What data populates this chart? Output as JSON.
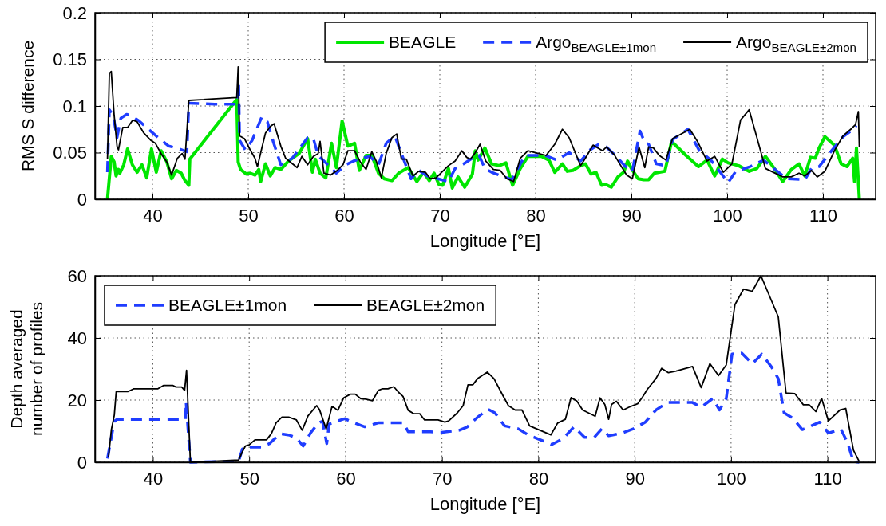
{
  "chart_data": [
    {
      "type": "line",
      "xlabel": "Longitude  [°E]",
      "ylabel": "RMS S difference",
      "xlim": [
        34,
        115.5
      ],
      "ylim": [
        0,
        0.2
      ],
      "xticks": [
        40,
        50,
        60,
        70,
        80,
        90,
        100,
        110
      ],
      "yticks": [
        0,
        0.05,
        0.1,
        0.15,
        0.2
      ],
      "grid": true,
      "legend": "top right",
      "series": [
        {
          "name": "BEAGLE",
          "color": "#00e600",
          "line_style": "solid",
          "x": [
            35.3,
            35.7,
            36.0,
            36.2,
            36.45,
            36.6,
            37.0,
            37.4,
            37.9,
            38.4,
            38.9,
            39.4,
            39.9,
            40.4,
            40.9,
            41.5,
            42.0,
            42.5,
            43.0,
            43.4,
            43.8,
            43.9,
            48.8,
            48.95,
            49.2,
            49.8,
            50.2,
            50.7,
            51.1,
            51.3,
            51.8,
            52.3,
            52.8,
            53.4,
            54.2,
            55.3,
            56.2,
            56.7,
            57.0,
            57.5,
            58.1,
            58.7,
            59.2,
            59.8,
            60.4,
            61.1,
            61.6,
            62.3,
            62.9,
            63.6,
            64.2,
            65.0,
            65.7,
            66.7,
            67.6,
            68.3,
            68.9,
            69.4,
            69.9,
            70.3,
            70.9,
            71.3,
            71.9,
            72.6,
            73.4,
            73.7,
            74.0,
            74.7,
            75.4,
            76.2,
            76.9,
            77.6,
            78.4,
            79.2,
            80.6,
            81.4,
            82.0,
            82.8,
            83.3,
            83.9,
            84.7,
            85.2,
            85.8,
            86.3,
            86.9,
            87.3,
            87.9,
            88.6,
            89.2,
            89.6,
            90.0,
            90.7,
            91.3,
            91.8,
            92.4,
            93.5,
            94.2,
            95.7,
            97.0,
            97.9,
            98.7,
            99.5,
            100.1,
            101.2,
            102.3,
            103.1,
            104.0,
            105.0,
            105.8,
            106.7,
            107.5,
            108.1,
            108.7,
            109.2,
            109.6,
            110.2,
            111.2,
            111.9,
            112.5,
            113.1,
            113.3,
            113.5,
            113.8
          ],
          "values": [
            0,
            0.046,
            0.04,
            0.025,
            0.032,
            0.028,
            0.037,
            0.054,
            0.037,
            0.029,
            0.037,
            0.023,
            0.054,
            0.029,
            0.052,
            0.04,
            0.022,
            0.031,
            0.028,
            0.02,
            0.015,
            0.043,
            0.107,
            0.04,
            0.032,
            0.027,
            0.028,
            0.026,
            0.032,
            0.019,
            0.038,
            0.025,
            0.034,
            0.032,
            0.041,
            0.049,
            0.065,
            0.029,
            0.043,
            0.028,
            0.023,
            0.06,
            0.034,
            0.084,
            0.057,
            0.06,
            0.031,
            0.047,
            0.047,
            0.028,
            0.022,
            0.02,
            0.028,
            0.034,
            0.019,
            0.029,
            0.02,
            0.028,
            0.016,
            0.015,
            0.033,
            0.012,
            0.024,
            0.013,
            0.027,
            0.052,
            0.042,
            0.055,
            0.038,
            0.036,
            0.039,
            0.015,
            0.033,
            0.046,
            0.046,
            0.042,
            0.029,
            0.038,
            0.03,
            0.031,
            0.036,
            0.038,
            0.027,
            0.029,
            0.015,
            0.016,
            0.013,
            0.024,
            0.029,
            0.041,
            0.033,
            0.022,
            0.021,
            0.021,
            0.028,
            0.03,
            0.062,
            0.047,
            0.035,
            0.042,
            0.025,
            0.043,
            0.039,
            0.036,
            0.03,
            0.033,
            0.046,
            0.032,
            0.019,
            0.032,
            0.038,
            0.025,
            0.045,
            0.044,
            0.055,
            0.067,
            0.058,
            0.038,
            0.035,
            0.044,
            0.019,
            0.055,
            0
          ]
        },
        {
          "name": "Argo$_{BEAGLE±1mon}$",
          "color": "#1f3dff",
          "line_style": "dashed",
          "x": [
            35.3,
            35.5,
            35.9,
            36.3,
            36.7,
            37.3,
            37.7,
            38.6,
            39.7,
            40.6,
            41.7,
            42.8,
            43.6,
            43.8,
            46.5,
            48.85,
            49.0,
            49.1,
            49.7,
            50.4,
            51.4,
            52.0,
            52.6,
            53.4,
            54.6,
            56.2,
            56.8,
            57.3,
            58.2,
            59.2,
            60.2,
            61.0,
            61.9,
            62.7,
            63.6,
            64.4,
            65.3,
            66.1,
            67.0,
            67.8,
            68.7,
            69.8,
            70.9,
            71.6,
            72.5,
            73.4,
            74.1,
            74.7,
            75.4,
            77.5,
            78.9,
            81.0,
            82.2,
            83.5,
            84.7,
            85.7,
            86.6,
            87.4,
            88.3,
            89.4,
            90.1,
            90.9,
            91.4,
            91.8,
            92.6,
            93.6,
            94.3,
            95.9,
            97.1,
            98.3,
            99.2,
            100.1,
            100.9,
            102.4,
            103.8,
            105.0,
            106.2,
            108.1,
            108.8,
            109.6,
            110.9,
            112.1,
            112.9,
            113.5
          ],
          "values": [
            0.029,
            0.096,
            0.09,
            0.066,
            0.087,
            0.091,
            0.09,
            0.084,
            0.074,
            0.066,
            0.057,
            0.054,
            0.051,
            0.103,
            0.102,
            0.102,
            0.125,
            0.063,
            0.053,
            0.063,
            0.088,
            0.083,
            0.062,
            0.037,
            0.044,
            0.066,
            0.065,
            0.047,
            0.038,
            0.028,
            0.037,
            0.041,
            0.044,
            0.046,
            0.037,
            0.06,
            0.068,
            0.046,
            0.022,
            0.031,
            0.025,
            0.022,
            0.019,
            0.033,
            0.038,
            0.044,
            0.047,
            0.033,
            0.029,
            0.021,
            0.047,
            0.047,
            0.042,
            0.05,
            0.041,
            0.053,
            0.059,
            0.056,
            0.047,
            0.035,
            0.03,
            0.073,
            0.061,
            0.059,
            0.038,
            0.036,
            0.064,
            0.075,
            0.052,
            0.042,
            0.03,
            0.018,
            0.03,
            0.035,
            0.042,
            0.032,
            0.022,
            0.021,
            0.033,
            0.035,
            0.052,
            0.067,
            0.073,
            0.079
          ]
        },
        {
          "name": "Argo$_{BEAGLE±2mon}$",
          "color": "#000000",
          "line_style": "solid",
          "x": [
            35.3,
            35.5,
            35.7,
            36.0,
            36.3,
            36.45,
            36.9,
            37.4,
            37.95,
            38.4,
            39.1,
            39.85,
            40.3,
            40.9,
            41.5,
            42.0,
            42.6,
            43.1,
            43.4,
            43.8,
            48.8,
            48.95,
            49.1,
            49.6,
            50.2,
            50.7,
            50.96,
            51.4,
            51.8,
            52.3,
            52.7,
            53.4,
            53.9,
            55.1,
            55.6,
            56.2,
            56.8,
            57.3,
            57.5,
            57.9,
            58.6,
            59.3,
            59.9,
            60.4,
            61.1,
            61.7,
            62.3,
            62.9,
            63.4,
            63.9,
            64.4,
            65.0,
            65.5,
            65.99,
            66.5,
            67.2,
            67.8,
            68.5,
            69.0,
            69.6,
            70.9,
            71.6,
            72.3,
            72.8,
            73.2,
            73.7,
            74.2,
            74.8,
            75.6,
            76.3,
            77.0,
            77.7,
            78.4,
            79.2,
            81.1,
            82.0,
            82.8,
            83.5,
            84.7,
            85.2,
            86.0,
            87.0,
            87.4,
            88.2,
            88.9,
            89.5,
            90.1,
            90.8,
            91.4,
            91.8,
            92.3,
            92.9,
            93.6,
            94.3,
            96.1,
            96.9,
            97.9,
            98.7,
            99.6,
            100.5,
            101.4,
            102.3,
            104.0,
            105.8,
            106.7,
            107.5,
            108.1,
            108.8,
            109.4,
            110.2,
            111.2,
            112.1,
            112.9,
            113.4,
            113.7,
            113.8
          ],
          "values": [
            0.043,
            0.135,
            0.137,
            0.09,
            0.057,
            0.053,
            0.077,
            0.077,
            0.085,
            0.083,
            0.071,
            0.063,
            0.06,
            0.049,
            0.04,
            0.026,
            0.044,
            0.049,
            0.043,
            0.106,
            0.109,
            0.142,
            0.068,
            0.065,
            0.053,
            0.044,
            0.035,
            0.054,
            0.071,
            0.078,
            0.081,
            0.057,
            0.044,
            0.034,
            0.046,
            0.037,
            0.046,
            0.049,
            0.062,
            0.028,
            0.026,
            0.031,
            0.037,
            0.052,
            0.052,
            0.04,
            0.032,
            0.051,
            0.04,
            0.023,
            0.049,
            0.066,
            0.07,
            0.043,
            0.043,
            0.025,
            0.03,
            0.029,
            0.022,
            0.023,
            0.036,
            0.041,
            0.052,
            0.045,
            0.043,
            0.05,
            0.059,
            0.041,
            0.032,
            0.031,
            0.022,
            0.019,
            0.044,
            0.052,
            0.047,
            0.059,
            0.075,
            0.066,
            0.036,
            0.044,
            0.058,
            0.052,
            0.056,
            0.048,
            0.036,
            0.026,
            0.022,
            0.056,
            0.034,
            0.056,
            0.055,
            0.047,
            0.042,
            0.065,
            0.075,
            0.062,
            0.041,
            0.046,
            0.029,
            0.038,
            0.085,
            0.096,
            0.033,
            0.024,
            0.024,
            0.028,
            0.025,
            0.031,
            0.024,
            0.03,
            0.052,
            0.068,
            0.075,
            0.08,
            0.094,
            0.056
          ]
        }
      ]
    },
    {
      "type": "line",
      "xlabel": "Longitude  [°E]",
      "ylabel": "Depth averaged\nnumber of profiles",
      "xlim": [
        34,
        115
      ],
      "ylim": [
        0,
        60
      ],
      "xticks": [
        40,
        50,
        60,
        70,
        80,
        90,
        100,
        110
      ],
      "yticks": [
        0,
        20,
        40,
        60
      ],
      "grid": true,
      "legend": "top left",
      "series": [
        {
          "name": "BEAGLE±1mon",
          "color": "#1f3dff",
          "line_style": "dashed",
          "x": [
            35.3,
            36.0,
            36.3,
            43.4,
            43.45,
            43.9,
            46.8,
            48.9,
            49.3,
            50.0,
            51.3,
            52.1,
            53.2,
            54.2,
            54.9,
            55.6,
            56.4,
            57.2,
            57.6,
            58.05,
            58.3,
            59.2,
            59.9,
            60.9,
            62.0,
            63.4,
            64.8,
            66.0,
            66.5,
            68.8,
            69.6,
            70.0,
            71.8,
            72.6,
            73.7,
            74.8,
            75.5,
            76.5,
            77.9,
            78.9,
            79.9,
            81.4,
            82.6,
            83.7,
            84.8,
            85.8,
            86.6,
            87.3,
            88.7,
            89.9,
            91.1,
            92.2,
            93.4,
            96.0,
            96.9,
            98.1,
            98.8,
            99.5,
            100.1,
            101.1,
            102.2,
            103.2,
            104.2,
            104.9,
            105.5,
            106.4,
            107.4,
            108.1,
            109.2,
            110.1,
            111.4,
            112.1,
            112.7,
            113.3
          ],
          "values": [
            1.2,
            13.2,
            13.8,
            13.8,
            19.4,
            0,
            0.2,
            0.2,
            4.3,
            4.9,
            4.9,
            6,
            9.2,
            8.7,
            7.8,
            5.2,
            9.6,
            12.7,
            13.2,
            6,
            12.3,
            13.3,
            14,
            12.7,
            11.4,
            12.7,
            12.7,
            12.7,
            9.8,
            9.8,
            9.6,
            9.6,
            10.3,
            11.3,
            14.5,
            17,
            15.9,
            11.7,
            10.8,
            8.9,
            7.6,
            5.7,
            7.7,
            11.4,
            8,
            8,
            10.8,
            8.5,
            9.4,
            10.8,
            12.9,
            16.8,
            19.2,
            19.2,
            17.7,
            20.5,
            16.8,
            20.5,
            34.8,
            35.1,
            31.7,
            34.8,
            30.6,
            26.9,
            15.9,
            14.2,
            10.5,
            11.4,
            12.9,
            9.4,
            10.6,
            6.2,
            0.2,
            0
          ]
        },
        {
          "name": "BEAGLE±2mon",
          "color": "#000000",
          "line_style": "solid",
          "x": [
            35.4,
            35.7,
            36.0,
            36.2,
            37.4,
            38.0,
            40.5,
            41.1,
            42.1,
            42.4,
            43.0,
            43.3,
            43.5,
            43.9,
            48.9,
            49.3,
            49.6,
            50.0,
            50.6,
            51.8,
            52.3,
            52.8,
            53.4,
            54.1,
            54.9,
            55.5,
            56.1,
            57.0,
            57.3,
            57.99,
            58.6,
            59.2,
            59.8,
            60.5,
            61.0,
            61.6,
            62.1,
            62.8,
            63.4,
            63.8,
            64.4,
            65.0,
            65.5,
            65.96,
            66.5,
            67.1,
            67.7,
            68.2,
            69.6,
            70.3,
            70.7,
            71.6,
            72.2,
            72.7,
            73.2,
            73.7,
            74.7,
            75.4,
            76.3,
            76.9,
            77.6,
            78.3,
            79.1,
            81.3,
            82.0,
            82.8,
            83.4,
            84.0,
            84.6,
            85.9,
            86.4,
            86.9,
            87.3,
            87.6,
            88.1,
            88.8,
            89.4,
            90.3,
            90.8,
            91.3,
            92.2,
            92.8,
            93.5,
            94.3,
            96.0,
            96.9,
            97.8,
            98.7,
            99.5,
            100.4,
            101.3,
            102.2,
            103.1,
            104.9,
            105.7,
            106.6,
            107.5,
            108.1,
            108.8,
            109.4,
            110.1,
            111.3,
            111.9,
            112.7,
            113.3
          ],
          "values": [
            1.6,
            10.5,
            15.1,
            22.7,
            22.7,
            23.6,
            23.6,
            24.7,
            24.7,
            24.2,
            24.2,
            23.1,
            29.6,
            0,
            0.7,
            3.4,
            5.2,
            5.6,
            7.2,
            7.2,
            9.2,
            12.7,
            14.5,
            14.5,
            13.6,
            10.3,
            14.9,
            18.2,
            16.9,
            10.7,
            18,
            16.7,
            20.7,
            21.9,
            21.9,
            20.4,
            20.3,
            19.8,
            23.1,
            23.6,
            23.6,
            24.3,
            22.5,
            21.2,
            16.7,
            15.6,
            15.6,
            13.6,
            13.6,
            12.9,
            13.3,
            15.9,
            18.2,
            24.9,
            24.9,
            26.9,
            29,
            26.9,
            21.6,
            18.2,
            16.8,
            16.8,
            11.7,
            8.8,
            12.6,
            13.8,
            20.8,
            19.7,
            16.8,
            14.8,
            20.7,
            18.6,
            13.8,
            18.6,
            19.6,
            16.8,
            17.7,
            18.8,
            20.9,
            23.4,
            26.9,
            30.2,
            28.8,
            29.3,
            30.8,
            24,
            31.7,
            27.9,
            31.3,
            50.7,
            55.7,
            55,
            60,
            46.8,
            22.3,
            22.1,
            18.5,
            18.5,
            16.3,
            20.5,
            13.3,
            16.8,
            17.3,
            3.9,
            0.2
          ]
        }
      ]
    }
  ]
}
